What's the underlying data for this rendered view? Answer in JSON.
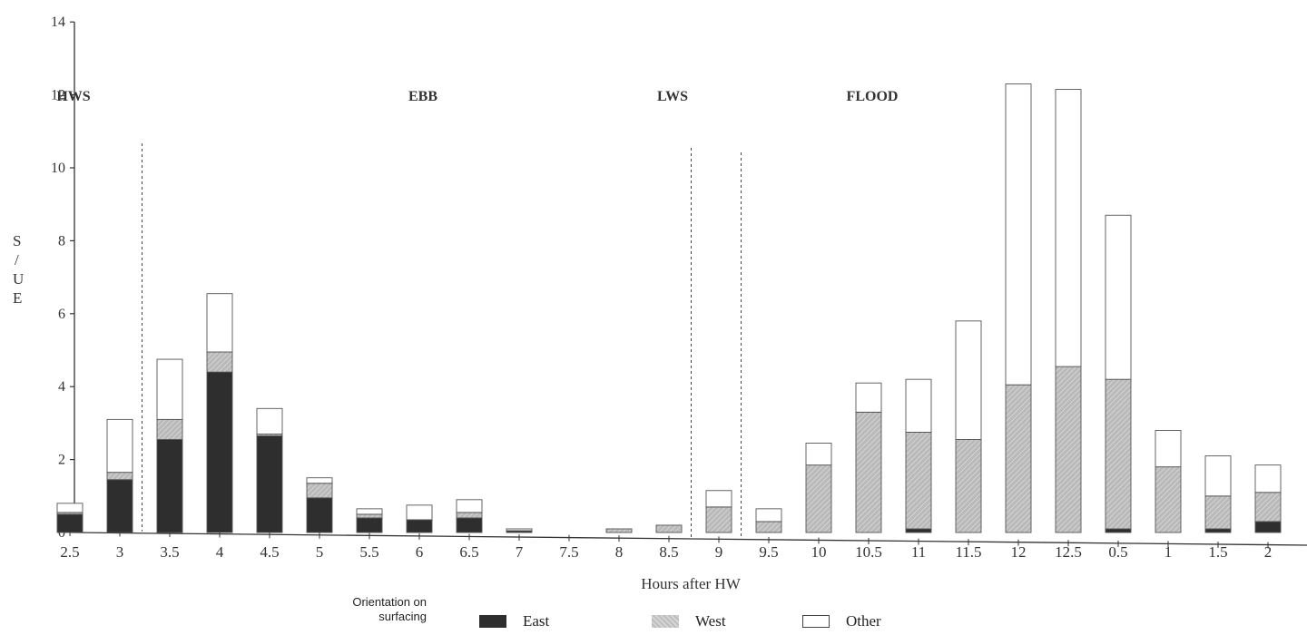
{
  "chart_data": {
    "type": "bar",
    "stacked": true,
    "title": "",
    "xlabel": "Hours after HW",
    "ylabel": "S / UE",
    "ylim": [
      0,
      14
    ],
    "yticks": [
      0,
      2,
      4,
      6,
      8,
      10,
      12,
      14
    ],
    "categories": [
      "2.5",
      "3",
      "3.5",
      "4",
      "4.5",
      "5",
      "5.5",
      "6",
      "6.5",
      "7",
      "7.5",
      "8",
      "8.5",
      "9",
      "9.5",
      "10",
      "10.5",
      "11",
      "11.5",
      "12",
      "12.5",
      "0.5",
      "1",
      "1.5",
      "2"
    ],
    "series": [
      {
        "name": "East",
        "color": "#2e2e2e",
        "values": [
          0.5,
          1.45,
          2.55,
          4.4,
          2.65,
          0.95,
          0.4,
          0.35,
          0.4,
          0.05,
          0.0,
          0.0,
          0.0,
          0.0,
          0.0,
          0.0,
          0.0,
          0.1,
          0.0,
          0.0,
          0.0,
          0.1,
          0.0,
          0.1,
          0.3
        ]
      },
      {
        "name": "West",
        "color": "#bdbdbd",
        "values": [
          0.05,
          0.2,
          0.55,
          0.55,
          0.05,
          0.4,
          0.1,
          0.0,
          0.15,
          0.0,
          0.0,
          0.1,
          0.2,
          0.7,
          0.3,
          1.85,
          3.3,
          2.65,
          2.55,
          4.05,
          4.55,
          4.1,
          1.8,
          0.9,
          0.8
        ]
      },
      {
        "name": "Other",
        "color": "#ffffff",
        "values": [
          0.25,
          1.45,
          1.65,
          1.6,
          0.7,
          0.15,
          0.15,
          0.4,
          0.35,
          0.05,
          0.0,
          0.0,
          0.0,
          0.45,
          0.35,
          0.6,
          0.8,
          1.45,
          3.25,
          8.25,
          7.6,
          4.5,
          1.0,
          1.1,
          0.75
        ]
      }
    ],
    "phases": [
      {
        "label": "HWS",
        "x_category": 0
      },
      {
        "label": "EBB",
        "x_category": 7
      },
      {
        "label": "LWS",
        "x_category": 12
      },
      {
        "label": "FLOOD",
        "x_category": 16
      }
    ],
    "dividers_after_category": [
      1,
      12,
      13
    ],
    "grid": false,
    "legend_position": "bottom"
  },
  "legend": {
    "title_line1": "Orientation on",
    "title_line2": "surfacing",
    "east": "East",
    "west": "West",
    "other": "Other"
  }
}
